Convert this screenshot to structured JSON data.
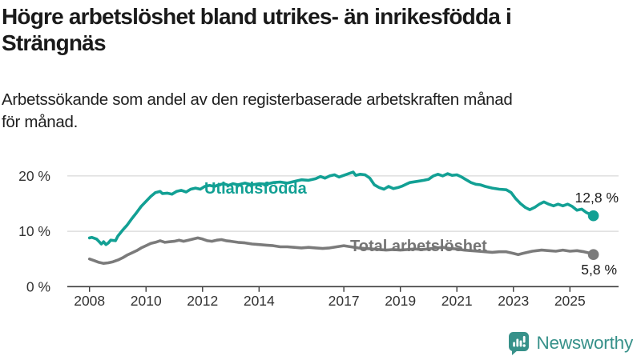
{
  "title": "Högre arbetslöshet bland utrikes- än inrikesfödda i\nSträngnäs",
  "subtitle": "Arbetssökande som andel av den registerbaserade arbetskraften månad\nför månad.",
  "chart_data": {
    "type": "line",
    "title": "Högre arbetslöshet bland utrikes- än inrikesfödda i Strängnäs",
    "subtitle": "Arbetssökande som andel av den registerbaserade arbetskraften månad för månad.",
    "xlabel": "",
    "ylabel": "",
    "grid": "horizontal-only",
    "legend_position": "inline-labels-on-lines",
    "xlim": [
      2007.8,
      2026.7
    ],
    "ylim": [
      0,
      22
    ],
    "x_ticks": [
      2008,
      2010,
      2012,
      2014,
      2017,
      2019,
      2021,
      2023,
      2025
    ],
    "y_ticks": [
      {
        "value": 0,
        "label": "0 %"
      },
      {
        "value": 10,
        "label": "10 %"
      },
      {
        "value": 20,
        "label": "20 %"
      }
    ],
    "series": [
      {
        "name": "Utlandsfödda",
        "color": "#12a094",
        "end_label": "12,8 %",
        "end_value": 12.8,
        "points": [
          [
            2008.0,
            8.8
          ],
          [
            2008.08,
            8.9
          ],
          [
            2008.25,
            8.6
          ],
          [
            2008.33,
            8.2
          ],
          [
            2008.42,
            7.7
          ],
          [
            2008.5,
            8.1
          ],
          [
            2008.58,
            7.6
          ],
          [
            2008.67,
            7.9
          ],
          [
            2008.75,
            8.4
          ],
          [
            2008.92,
            8.3
          ],
          [
            2009.0,
            9.1
          ],
          [
            2009.17,
            10.2
          ],
          [
            2009.33,
            11.1
          ],
          [
            2009.5,
            12.3
          ],
          [
            2009.67,
            13.4
          ],
          [
            2009.83,
            14.5
          ],
          [
            2010.0,
            15.4
          ],
          [
            2010.17,
            16.3
          ],
          [
            2010.33,
            17.0
          ],
          [
            2010.5,
            17.2
          ],
          [
            2010.58,
            16.8
          ],
          [
            2010.75,
            16.9
          ],
          [
            2010.92,
            16.7
          ],
          [
            2011.08,
            17.2
          ],
          [
            2011.25,
            17.4
          ],
          [
            2011.42,
            17.1
          ],
          [
            2011.58,
            17.6
          ],
          [
            2011.75,
            17.8
          ],
          [
            2011.92,
            17.6
          ],
          [
            2012.08,
            18.1
          ],
          [
            2012.25,
            18.3
          ],
          [
            2012.42,
            18.1
          ],
          [
            2012.58,
            18.4
          ],
          [
            2012.75,
            18.6
          ],
          [
            2012.92,
            18.3
          ],
          [
            2013.08,
            18.6
          ],
          [
            2013.25,
            18.4
          ],
          [
            2013.5,
            18.7
          ],
          [
            2013.75,
            18.4
          ],
          [
            2014.0,
            18.6
          ],
          [
            2014.25,
            18.5
          ],
          [
            2014.5,
            18.8
          ],
          [
            2014.75,
            18.9
          ],
          [
            2015.0,
            18.7
          ],
          [
            2015.25,
            19.0
          ],
          [
            2015.5,
            19.3
          ],
          [
            2015.75,
            19.2
          ],
          [
            2016.0,
            19.5
          ],
          [
            2016.17,
            19.9
          ],
          [
            2016.33,
            19.6
          ],
          [
            2016.5,
            20.0
          ],
          [
            2016.67,
            20.2
          ],
          [
            2016.83,
            19.8
          ],
          [
            2017.0,
            20.1
          ],
          [
            2017.17,
            20.4
          ],
          [
            2017.33,
            20.7
          ],
          [
            2017.42,
            20.1
          ],
          [
            2017.58,
            20.3
          ],
          [
            2017.75,
            20.2
          ],
          [
            2017.92,
            19.6
          ],
          [
            2018.08,
            18.4
          ],
          [
            2018.25,
            17.9
          ],
          [
            2018.42,
            17.6
          ],
          [
            2018.58,
            18.1
          ],
          [
            2018.75,
            17.7
          ],
          [
            2018.92,
            17.9
          ],
          [
            2019.08,
            18.2
          ],
          [
            2019.33,
            18.8
          ],
          [
            2019.58,
            19.0
          ],
          [
            2019.83,
            19.2
          ],
          [
            2020.0,
            19.4
          ],
          [
            2020.17,
            20.0
          ],
          [
            2020.33,
            20.3
          ],
          [
            2020.5,
            20.0
          ],
          [
            2020.67,
            20.4
          ],
          [
            2020.83,
            20.1
          ],
          [
            2021.0,
            20.2
          ],
          [
            2021.17,
            19.8
          ],
          [
            2021.33,
            19.3
          ],
          [
            2021.5,
            18.8
          ],
          [
            2021.67,
            18.5
          ],
          [
            2021.83,
            18.4
          ],
          [
            2022.0,
            18.1
          ],
          [
            2022.25,
            17.8
          ],
          [
            2022.5,
            17.6
          ],
          [
            2022.75,
            17.5
          ],
          [
            2022.92,
            17.0
          ],
          [
            2023.08,
            15.9
          ],
          [
            2023.25,
            15.0
          ],
          [
            2023.42,
            14.3
          ],
          [
            2023.58,
            13.9
          ],
          [
            2023.75,
            14.3
          ],
          [
            2023.92,
            14.9
          ],
          [
            2024.08,
            15.3
          ],
          [
            2024.25,
            14.9
          ],
          [
            2024.42,
            14.6
          ],
          [
            2024.58,
            14.9
          ],
          [
            2024.75,
            14.6
          ],
          [
            2024.92,
            14.9
          ],
          [
            2025.08,
            14.5
          ],
          [
            2025.25,
            13.8
          ],
          [
            2025.42,
            14.0
          ],
          [
            2025.58,
            13.4
          ],
          [
            2025.75,
            13.0
          ],
          [
            2025.83,
            12.8
          ]
        ]
      },
      {
        "name": "Total arbetslöshet",
        "color": "#7b7b7b",
        "end_label": "5,8 %",
        "end_value": 5.8,
        "points": [
          [
            2008.0,
            5.0
          ],
          [
            2008.17,
            4.7
          ],
          [
            2008.33,
            4.4
          ],
          [
            2008.5,
            4.2
          ],
          [
            2008.67,
            4.3
          ],
          [
            2008.83,
            4.5
          ],
          [
            2009.0,
            4.8
          ],
          [
            2009.17,
            5.2
          ],
          [
            2009.33,
            5.7
          ],
          [
            2009.5,
            6.1
          ],
          [
            2009.67,
            6.5
          ],
          [
            2009.83,
            7.0
          ],
          [
            2010.0,
            7.4
          ],
          [
            2010.17,
            7.8
          ],
          [
            2010.33,
            8.0
          ],
          [
            2010.5,
            8.3
          ],
          [
            2010.67,
            8.0
          ],
          [
            2010.83,
            8.1
          ],
          [
            2011.0,
            8.2
          ],
          [
            2011.17,
            8.4
          ],
          [
            2011.33,
            8.2
          ],
          [
            2011.5,
            8.4
          ],
          [
            2011.67,
            8.6
          ],
          [
            2011.83,
            8.8
          ],
          [
            2012.0,
            8.6
          ],
          [
            2012.17,
            8.3
          ],
          [
            2012.33,
            8.2
          ],
          [
            2012.5,
            8.4
          ],
          [
            2012.67,
            8.5
          ],
          [
            2012.83,
            8.3
          ],
          [
            2013.0,
            8.2
          ],
          [
            2013.25,
            8.0
          ],
          [
            2013.5,
            7.9
          ],
          [
            2013.75,
            7.7
          ],
          [
            2014.0,
            7.6
          ],
          [
            2014.25,
            7.5
          ],
          [
            2014.5,
            7.4
          ],
          [
            2014.75,
            7.2
          ],
          [
            2015.0,
            7.2
          ],
          [
            2015.25,
            7.1
          ],
          [
            2015.5,
            7.0
          ],
          [
            2015.75,
            7.1
          ],
          [
            2016.0,
            7.0
          ],
          [
            2016.25,
            6.9
          ],
          [
            2016.5,
            7.0
          ],
          [
            2016.75,
            7.2
          ],
          [
            2017.0,
            7.4
          ],
          [
            2017.25,
            7.2
          ],
          [
            2017.5,
            7.0
          ],
          [
            2017.75,
            6.9
          ],
          [
            2018.0,
            6.8
          ],
          [
            2018.25,
            6.7
          ],
          [
            2018.5,
            6.6
          ],
          [
            2018.75,
            6.7
          ],
          [
            2019.0,
            6.6
          ],
          [
            2019.25,
            6.7
          ],
          [
            2019.5,
            6.8
          ],
          [
            2019.75,
            6.7
          ],
          [
            2020.0,
            6.8
          ],
          [
            2020.25,
            7.0
          ],
          [
            2020.5,
            7.1
          ],
          [
            2020.75,
            6.9
          ],
          [
            2021.0,
            6.8
          ],
          [
            2021.25,
            6.6
          ],
          [
            2021.5,
            6.5
          ],
          [
            2021.75,
            6.4
          ],
          [
            2022.0,
            6.3
          ],
          [
            2022.25,
            6.2
          ],
          [
            2022.5,
            6.3
          ],
          [
            2022.75,
            6.3
          ],
          [
            2023.0,
            6.0
          ],
          [
            2023.17,
            5.8
          ],
          [
            2023.33,
            6.0
          ],
          [
            2023.5,
            6.2
          ],
          [
            2023.67,
            6.4
          ],
          [
            2023.83,
            6.5
          ],
          [
            2024.0,
            6.6
          ],
          [
            2024.25,
            6.5
          ],
          [
            2024.5,
            6.4
          ],
          [
            2024.75,
            6.6
          ],
          [
            2025.0,
            6.4
          ],
          [
            2025.25,
            6.5
          ],
          [
            2025.5,
            6.3
          ],
          [
            2025.67,
            6.1
          ],
          [
            2025.83,
            5.8
          ]
        ]
      }
    ],
    "colors": {
      "accent_teal": "#12a094",
      "line_gray": "#7b7b7b",
      "gridline": "#d9d9d9",
      "axis": "#3d3d3d",
      "tick_text": "#333333"
    }
  },
  "branding": {
    "name": "Newsworthy",
    "icon": "newsworthy-bar-chart-bubble-icon",
    "color": "#37918a"
  }
}
